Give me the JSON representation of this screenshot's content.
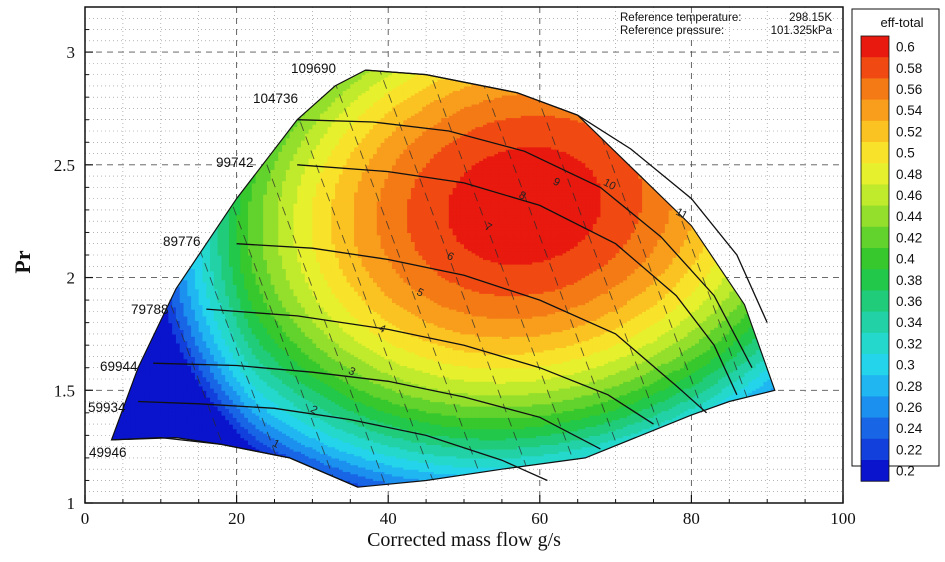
{
  "chart_data": {
    "type": "contour",
    "xlabel": "Corrected mass flow g/s",
    "ylabel": "Pr",
    "xlim": [
      0,
      100
    ],
    "ylim": [
      1,
      3.2
    ],
    "x_ticks": [
      "0",
      "20",
      "40",
      "60",
      "80",
      "100"
    ],
    "x_tick_values": [
      0,
      20,
      40,
      60,
      80,
      100
    ],
    "y_ticks": [
      "1",
      "1.5",
      "2",
      "2.5",
      "3"
    ],
    "y_tick_values": [
      1,
      1.5,
      2,
      2.5,
      3
    ],
    "grid": true,
    "reference": {
      "temp_label": "Reference temperature:",
      "temp_value": "298.15K",
      "pres_label": "Reference pressure:",
      "pres_value": "101.325kPa"
    },
    "legend": {
      "title": "eff-total",
      "placement": "right",
      "levels": [
        "0.6",
        "0.58",
        "0.56",
        "0.54",
        "0.52",
        "0.5",
        "0.48",
        "0.46",
        "0.44",
        "0.42",
        "0.4",
        "0.38",
        "0.36",
        "0.34",
        "0.32",
        "0.3",
        "0.28",
        "0.26",
        "0.24",
        "0.22",
        "0.2"
      ],
      "colors": [
        "#e8190e",
        "#f04a12",
        "#f47a16",
        "#f89e1c",
        "#fbc322",
        "#f8e22a",
        "#e6f02c",
        "#c0ea2c",
        "#94de2c",
        "#62d22c",
        "#36c82c",
        "#22c84a",
        "#20cc7a",
        "#22d2a6",
        "#24d8cc",
        "#24d4ea",
        "#20b6f2",
        "#1c90ee",
        "#1866e6",
        "#1240dc",
        "#0a14cc"
      ]
    },
    "boundary": [
      [
        3.5,
        1.28
      ],
      [
        12,
        1.29
      ],
      [
        18,
        1.26
      ],
      [
        27,
        1.2
      ],
      [
        36,
        1.07
      ],
      [
        45,
        1.1
      ],
      [
        55,
        1.15
      ],
      [
        66,
        1.2
      ],
      [
        80,
        1.39
      ],
      [
        85,
        1.45
      ],
      [
        91,
        1.5
      ],
      [
        87,
        1.88
      ],
      [
        80,
        2.23
      ],
      [
        65,
        2.72
      ],
      [
        57,
        2.82
      ],
      [
        45,
        2.9
      ],
      [
        37,
        2.92
      ],
      [
        33,
        2.85
      ],
      [
        28,
        2.7
      ],
      [
        20,
        2.35
      ],
      [
        12,
        1.95
      ],
      [
        7,
        1.6
      ]
    ],
    "speed_lines": [
      {
        "label": "49946",
        "points": [
          [
            3.5,
            1.28
          ],
          [
            10,
            1.29
          ],
          [
            18,
            1.26
          ],
          [
            27,
            1.2
          ],
          [
            36,
            1.07
          ]
        ]
      },
      {
        "label": "59934",
        "points": [
          [
            7,
            1.45
          ],
          [
            15,
            1.44
          ],
          [
            25,
            1.42
          ],
          [
            35,
            1.37
          ],
          [
            45,
            1.3
          ],
          [
            55,
            1.19
          ],
          [
            61,
            1.1
          ]
        ]
      },
      {
        "label": "69944",
        "points": [
          [
            9,
            1.62
          ],
          [
            20,
            1.61
          ],
          [
            30,
            1.58
          ],
          [
            40,
            1.54
          ],
          [
            50,
            1.47
          ],
          [
            60,
            1.38
          ],
          [
            68,
            1.24
          ]
        ]
      },
      {
        "label": "79788",
        "points": [
          [
            16,
            1.86
          ],
          [
            28,
            1.83
          ],
          [
            40,
            1.77
          ],
          [
            50,
            1.7
          ],
          [
            60,
            1.6
          ],
          [
            69,
            1.48
          ],
          [
            75,
            1.35
          ]
        ]
      },
      {
        "label": "89776",
        "points": [
          [
            20,
            2.15
          ],
          [
            30,
            2.13
          ],
          [
            40,
            2.08
          ],
          [
            50,
            2.01
          ],
          [
            60,
            1.9
          ],
          [
            70,
            1.75
          ],
          [
            78,
            1.52
          ],
          [
            82,
            1.4
          ]
        ]
      },
      {
        "label": "99742",
        "points": [
          [
            28,
            2.5
          ],
          [
            40,
            2.47
          ],
          [
            50,
            2.42
          ],
          [
            60,
            2.32
          ],
          [
            70,
            2.15
          ],
          [
            78,
            1.92
          ],
          [
            83,
            1.7
          ],
          [
            86,
            1.48
          ]
        ]
      },
      {
        "label": "104736",
        "points": [
          [
            28,
            2.7
          ],
          [
            38,
            2.69
          ],
          [
            48,
            2.65
          ],
          [
            58,
            2.56
          ],
          [
            68,
            2.4
          ],
          [
            76,
            2.18
          ],
          [
            83,
            1.92
          ],
          [
            88,
            1.6
          ]
        ]
      },
      {
        "label": "109690",
        "points": [
          [
            37,
            2.92
          ],
          [
            45,
            2.9
          ],
          [
            57,
            2.82
          ],
          [
            65,
            2.72
          ],
          [
            72,
            2.57
          ],
          [
            80,
            2.35
          ],
          [
            86,
            2.1
          ],
          [
            90,
            1.8
          ]
        ]
      }
    ],
    "efficiency_labels": [
      "1",
      "2",
      "3",
      "4",
      "5",
      "6",
      "7",
      "8",
      "9",
      "10",
      "11"
    ],
    "efficiency_label_positions": [
      [
        25,
        1.25
      ],
      [
        30,
        1.4
      ],
      [
        35,
        1.57
      ],
      [
        39,
        1.76
      ],
      [
        44,
        1.92
      ],
      [
        48,
        2.08
      ],
      [
        53,
        2.21
      ],
      [
        57.5,
        2.35
      ],
      [
        62,
        2.41
      ],
      [
        69,
        2.4
      ],
      [
        78.5,
        2.27
      ]
    ]
  }
}
